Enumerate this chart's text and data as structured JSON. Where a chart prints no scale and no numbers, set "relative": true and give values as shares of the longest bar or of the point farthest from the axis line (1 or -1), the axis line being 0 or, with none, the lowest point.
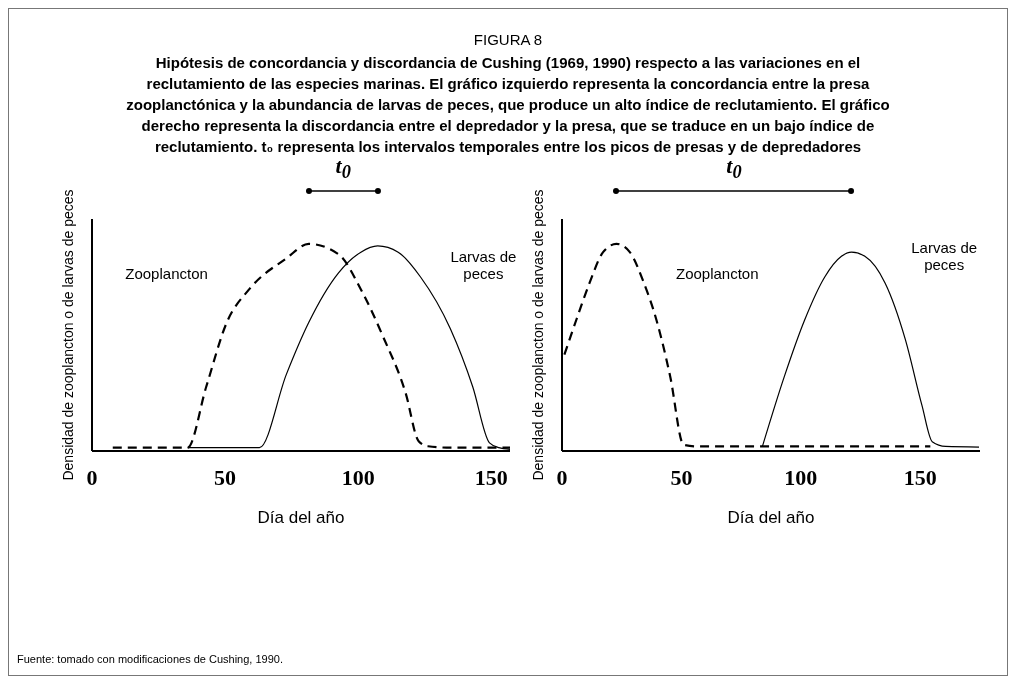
{
  "chart_data": [
    {
      "type": "line",
      "title": "FIGURA 8",
      "subtitle": "Hipótesis de concordancia y discordancia de Cushing (1969, 1990) respecto a las variaciones en el reclutamiento de las especies marinas. El gráfico izquierdo representa la concordancia entre la presa zooplanctónica y la abundancia de larvas de peces, que produce un alto índice de reclutamiento. El gráfico derecho representa la discordancia entre el depredador y la presa, que se traduce en un bajo índice de reclutamiento. t₀ representa los intervalos temporales entre los picos de presas y de depredadores",
      "xlabel": "Día del año",
      "ylabel": "Densidad de zooplancton o de larvas de peces",
      "relative": true,
      "xlim": [
        0,
        157
      ],
      "xticks": [
        0,
        50,
        100,
        150
      ],
      "grid": false,
      "legend": false,
      "marker": "none",
      "annotations": [
        "t$_{0}$",
        "Fuente: tomado con modificaciones de Cushing, 1990."
      ],
      "series": [
        {
          "name": "Zooplancton",
          "color": "#000000",
          "line_style": "dashed",
          "x": [
            7.8,
            35.9,
            42.9,
            50.6,
            59.0,
            73.0,
            81.4,
            92.6,
            101.0,
            109.4,
            117.8,
            122.7,
            126.2,
            134.6,
            157.0
          ],
          "values": [
            0.016,
            0.016,
            0.31,
            0.62,
            0.78,
            0.93,
            1.0,
            0.95,
            0.78,
            0.55,
            0.28,
            0.047,
            0.023,
            0.016,
            0.016
          ]
        },
        {
          "name": "Larvas de peces",
          "color": "#000000",
          "line_style": "solid",
          "x": [
            35.9,
            62.9,
            73.0,
            81.4,
            92.6,
            101.0,
            107.3,
            115.0,
            123.4,
            134.6,
            143.0,
            149.3,
            152.8,
            157.0
          ],
          "values": [
            0.016,
            0.016,
            0.37,
            0.62,
            0.86,
            0.96,
            0.99,
            0.96,
            0.84,
            0.59,
            0.31,
            0.039,
            0.016,
            0.008
          ]
        }
      ]
    },
    {
      "type": "line",
      "xlabel": "Día del año",
      "ylabel": "Densidad de zooplancton o de larvas de peces",
      "relative": true,
      "xlim": [
        0,
        175
      ],
      "xticks": [
        0,
        50,
        100,
        150
      ],
      "grid": false,
      "legend": false,
      "marker": "none",
      "annotations": [
        "t$_{0}$"
      ],
      "series": [
        {
          "name": "Zooplancton",
          "color": "#000000",
          "line_style": "dashed",
          "x": [
            1.0,
            5.9,
            11.5,
            17.2,
            22.8,
            28.4,
            34.0,
            39.6,
            45.3,
            50.9,
            56.5,
            154.2
          ],
          "values": [
            0.465,
            0.63,
            0.81,
            0.96,
            1.0,
            0.96,
            0.82,
            0.63,
            0.36,
            0.03,
            0.022,
            0.022
          ]
        },
        {
          "name": "Larvas de peces",
          "color": "#000000",
          "line_style": "solid",
          "x": [
            83.9,
            93.1,
            101.5,
            110.0,
            117.0,
            121.2,
            126.8,
            135.3,
            143.7,
            150.7,
            155.0,
            160.6,
            174.6
          ],
          "values": [
            0.022,
            0.36,
            0.63,
            0.84,
            0.94,
            0.96,
            0.94,
            0.81,
            0.54,
            0.22,
            0.045,
            0.022,
            0.019
          ]
        }
      ]
    }
  ]
}
